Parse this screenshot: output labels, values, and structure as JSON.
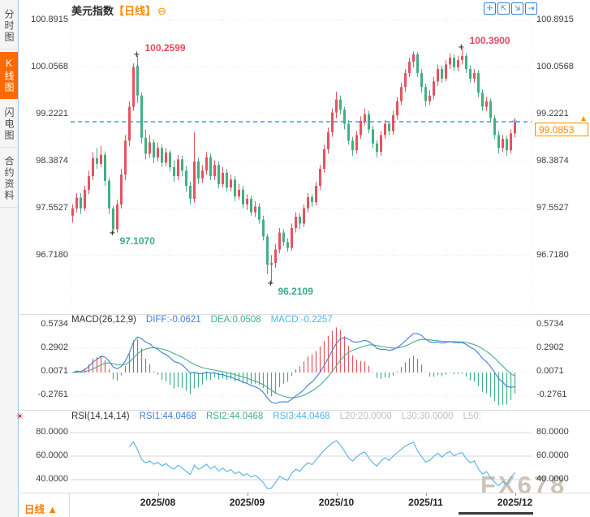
{
  "sidebar": {
    "items": [
      {
        "label": "分时图",
        "active": false
      },
      {
        "label": "K线图",
        "active": true
      },
      {
        "label": "闪电图",
        "active": false
      },
      {
        "label": "合约资料",
        "active": false
      }
    ]
  },
  "header": {
    "title": "美元指数",
    "period_tag": "【日线】",
    "collapse_icon": "⊖"
  },
  "toolbar": {
    "icons": [
      {
        "name": "crosshair-icon",
        "glyph": "✛"
      },
      {
        "name": "scale-left-icon",
        "glyph": "⇱"
      },
      {
        "name": "scale-right-icon",
        "glyph": "⇲"
      },
      {
        "name": "pan-right-icon",
        "glyph": "⇥"
      }
    ]
  },
  "main_chart": {
    "axis_labels": [
      "100.8915",
      "100.0568",
      "99.2221",
      "98.3874",
      "97.5527",
      "96.7180"
    ],
    "current_price": "99.0853",
    "current_price_value": 99.0853,
    "annotations": [
      {
        "label": "100.2599",
        "price": 100.2599,
        "index": 16,
        "kind": "high"
      },
      {
        "label": "100.3900",
        "price": 100.39,
        "index": 96,
        "kind": "high"
      },
      {
        "label": "97.1070",
        "price": 97.107,
        "index": 10,
        "kind": "low"
      },
      {
        "label": "96.2109",
        "price": 96.2109,
        "index": 49,
        "kind": "low"
      }
    ]
  },
  "macd": {
    "title": "MACD(26,12,9)",
    "diff": "DIFF:-0.0621",
    "dea": "DEA:0.0508",
    "macd": "MACD:-0.2257",
    "axis_labels": [
      "0.5734",
      "0.2902",
      "0.0071",
      "-0.2761"
    ]
  },
  "rsi": {
    "title": "RSI(14,14,14)",
    "rsi1": "RSI1:44.0468",
    "rsi2": "RSI2:44.0468",
    "rsi3": "RSI3:44.0468",
    "l20": "L20:20.0000",
    "l30": "L30:30.0000",
    "l50": "L50:",
    "axis_labels": [
      "80.0000",
      "60.0000",
      "40.0000"
    ]
  },
  "bottom": {
    "period_label": "日线",
    "period_arrow": "▲",
    "x_labels": [
      "2025/08",
      "2025/09",
      "2025/10",
      "2025/11",
      "2025/12"
    ]
  },
  "watermark": "FX678",
  "colors": {
    "up": "#e5535f",
    "down": "#43af85",
    "accent": "#ff8a00",
    "dashed_line": "#1e87f0",
    "diff_line": "#3f7ed8",
    "dea_line": "#45af8c",
    "macd_text": "#4fb6e8",
    "grid": "#e4e4e4",
    "rsi_line": "#57b1e6",
    "anno_high": "#e8475e",
    "anno_low": "#3aaa8e",
    "level_grey": "#c0c0c0"
  },
  "chart_data": {
    "type": "candlestick",
    "note": "US Dollar Index daily OHLC, mid-July 2025 to early Dec 2025",
    "month_tick_indices": [
      21,
      43,
      65,
      87,
      109
    ],
    "candles": [
      [
        97.42,
        97.62,
        97.3,
        97.55
      ],
      [
        97.55,
        97.82,
        97.48,
        97.74
      ],
      [
        97.74,
        97.82,
        97.45,
        97.55
      ],
      [
        97.55,
        97.95,
        97.5,
        97.88
      ],
      [
        97.88,
        98.22,
        97.8,
        98.12
      ],
      [
        98.12,
        98.55,
        98.05,
        98.44
      ],
      [
        98.44,
        98.62,
        98.25,
        98.34
      ],
      [
        98.34,
        98.66,
        98.28,
        98.5
      ],
      [
        98.5,
        98.56,
        97.95,
        98.04
      ],
      [
        98.04,
        98.1,
        97.45,
        97.55
      ],
      [
        97.55,
        97.6,
        97.107,
        97.18
      ],
      [
        97.18,
        97.7,
        97.12,
        97.62
      ],
      [
        97.62,
        98.25,
        97.55,
        98.15
      ],
      [
        98.15,
        98.85,
        98.05,
        98.75
      ],
      [
        98.75,
        99.45,
        98.65,
        99.35
      ],
      [
        99.35,
        100.12,
        99.28,
        100.05
      ],
      [
        100.08,
        100.2599,
        99.42,
        99.55
      ],
      [
        99.55,
        99.6,
        98.7,
        98.8
      ],
      [
        98.8,
        98.95,
        98.42,
        98.52
      ],
      [
        98.52,
        98.85,
        98.45,
        98.72
      ],
      [
        98.72,
        98.78,
        98.35,
        98.45
      ],
      [
        98.45,
        98.72,
        98.38,
        98.62
      ],
      [
        98.62,
        98.68,
        98.28,
        98.36
      ],
      [
        98.36,
        98.62,
        98.3,
        98.54
      ],
      [
        98.54,
        98.58,
        98.2,
        98.28
      ],
      [
        98.28,
        98.4,
        98.02,
        98.12
      ],
      [
        98.12,
        98.5,
        98.05,
        98.42
      ],
      [
        98.42,
        98.48,
        98.12,
        98.22
      ],
      [
        98.22,
        98.3,
        97.85,
        97.95
      ],
      [
        97.95,
        98.02,
        97.62,
        97.72
      ],
      [
        97.72,
        98.9,
        97.65,
        98.38
      ],
      [
        98.38,
        98.45,
        97.98,
        98.08
      ],
      [
        98.08,
        98.32,
        98.0,
        98.22
      ],
      [
        98.22,
        98.55,
        98.15,
        98.46
      ],
      [
        98.46,
        98.52,
        98.05,
        98.12
      ],
      [
        98.12,
        98.4,
        98.05,
        98.32
      ],
      [
        98.32,
        98.38,
        97.9,
        97.98
      ],
      [
        97.98,
        98.28,
        97.92,
        98.18
      ],
      [
        98.18,
        98.25,
        97.85,
        97.92
      ],
      [
        97.92,
        98.15,
        97.85,
        98.06
      ],
      [
        98.06,
        98.12,
        97.68,
        97.76
      ],
      [
        97.76,
        97.98,
        97.7,
        97.88
      ],
      [
        97.88,
        97.95,
        97.55,
        97.62
      ],
      [
        97.62,
        97.8,
        97.52,
        97.72
      ],
      [
        97.72,
        97.78,
        97.42,
        97.48
      ],
      [
        97.48,
        97.68,
        97.4,
        97.58
      ],
      [
        97.58,
        97.64,
        97.28,
        97.35
      ],
      [
        97.35,
        97.42,
        96.98,
        97.05
      ],
      [
        97.05,
        97.1,
        96.38,
        96.55
      ],
      [
        96.55,
        96.72,
        96.2109,
        96.58
      ],
      [
        96.58,
        96.92,
        96.5,
        96.82
      ],
      [
        96.82,
        97.2,
        96.75,
        97.12
      ],
      [
        97.12,
        97.18,
        96.88,
        96.95
      ],
      [
        96.95,
        97.02,
        96.78,
        96.85
      ],
      [
        96.85,
        97.28,
        96.8,
        97.2
      ],
      [
        97.2,
        97.48,
        97.12,
        97.4
      ],
      [
        97.4,
        97.46,
        97.18,
        97.28
      ],
      [
        97.28,
        97.62,
        97.22,
        97.55
      ],
      [
        97.55,
        97.82,
        97.48,
        97.75
      ],
      [
        97.75,
        97.8,
        97.58,
        97.66
      ],
      [
        97.66,
        98.02,
        97.6,
        97.95
      ],
      [
        97.95,
        98.32,
        97.88,
        98.25
      ],
      [
        98.25,
        98.68,
        98.18,
        98.6
      ],
      [
        98.6,
        98.98,
        98.52,
        98.9
      ],
      [
        98.9,
        99.32,
        98.82,
        99.25
      ],
      [
        99.25,
        99.62,
        99.15,
        99.48
      ],
      [
        99.48,
        99.55,
        99.22,
        99.3
      ],
      [
        99.3,
        99.35,
        98.95,
        99.05
      ],
      [
        99.05,
        99.12,
        98.68,
        98.75
      ],
      [
        98.75,
        98.82,
        98.48,
        98.58
      ],
      [
        98.58,
        98.92,
        98.52,
        98.85
      ],
      [
        98.85,
        99.18,
        98.78,
        99.1
      ],
      [
        99.1,
        99.32,
        99.02,
        99.22
      ],
      [
        99.22,
        99.28,
        98.88,
        98.95
      ],
      [
        98.95,
        99.02,
        98.62,
        98.7
      ],
      [
        98.7,
        98.76,
        98.45,
        98.55
      ],
      [
        98.55,
        98.92,
        98.48,
        98.85
      ],
      [
        98.85,
        99.12,
        98.78,
        99.05
      ],
      [
        99.05,
        99.1,
        98.85,
        98.92
      ],
      [
        98.92,
        99.28,
        98.86,
        99.2
      ],
      [
        99.2,
        99.52,
        99.12,
        99.45
      ],
      [
        99.45,
        99.78,
        99.38,
        99.7
      ],
      [
        99.7,
        100.02,
        99.62,
        99.95
      ],
      [
        99.95,
        100.22,
        99.88,
        100.15
      ],
      [
        100.15,
        100.33,
        100.05,
        100.28
      ],
      [
        100.28,
        100.32,
        99.88,
        99.95
      ],
      [
        99.95,
        100.02,
        99.6,
        99.7
      ],
      [
        99.7,
        99.76,
        99.35,
        99.45
      ],
      [
        99.45,
        99.65,
        99.38,
        99.55
      ],
      [
        99.55,
        99.88,
        99.48,
        99.8
      ],
      [
        99.8,
        100.1,
        99.72,
        100.02
      ],
      [
        100.02,
        100.08,
        99.78,
        99.85
      ],
      [
        99.85,
        100.18,
        99.8,
        100.1
      ],
      [
        100.1,
        100.3,
        100.02,
        100.22
      ],
      [
        100.22,
        100.28,
        99.98,
        100.05
      ],
      [
        100.05,
        100.25,
        99.98,
        100.18
      ],
      [
        100.18,
        100.39,
        100.1,
        100.25
      ],
      [
        100.25,
        100.3,
        99.95,
        100.02
      ],
      [
        100.02,
        100.08,
        99.78,
        99.85
      ],
      [
        99.85,
        100.02,
        99.78,
        99.95
      ],
      [
        99.95,
        100.0,
        99.52,
        99.6
      ],
      [
        99.6,
        99.66,
        99.28,
        99.35
      ],
      [
        99.35,
        99.52,
        99.28,
        99.45
      ],
      [
        99.45,
        99.5,
        99.08,
        99.15
      ],
      [
        99.15,
        99.2,
        98.78,
        98.85
      ],
      [
        98.85,
        98.92,
        98.52,
        98.62
      ],
      [
        98.62,
        98.85,
        98.55,
        98.78
      ],
      [
        98.78,
        98.84,
        98.48,
        98.58
      ],
      [
        98.58,
        98.95,
        98.52,
        98.88
      ],
      [
        98.88,
        99.15,
        98.8,
        99.0853
      ]
    ]
  }
}
